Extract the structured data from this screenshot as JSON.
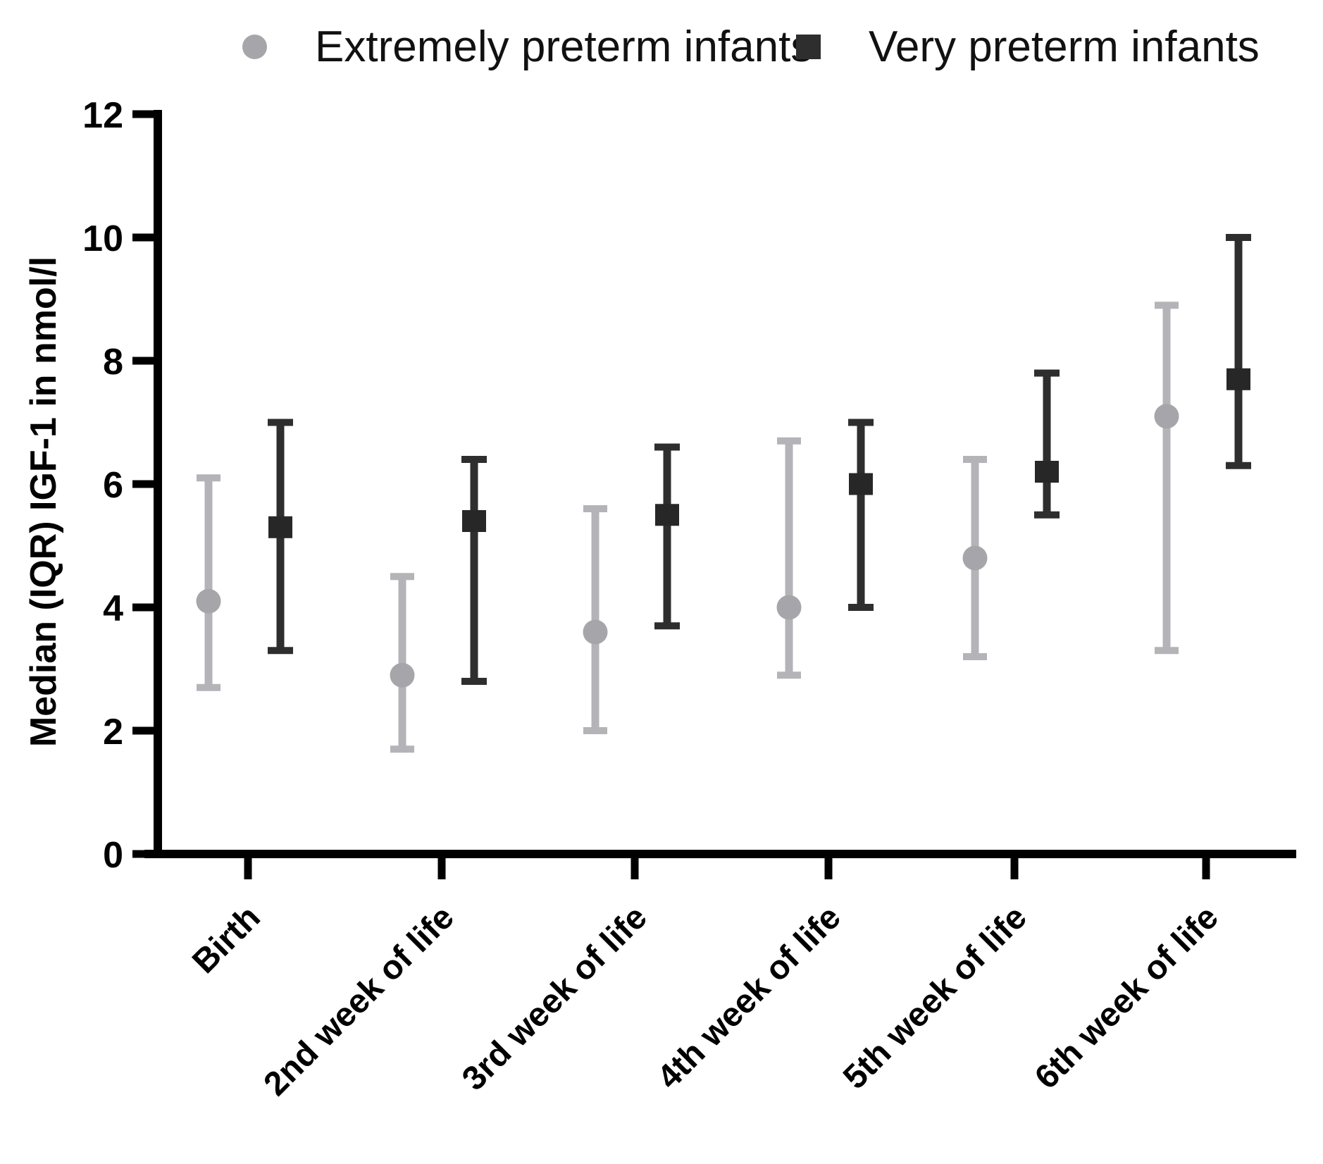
{
  "legend": {
    "items": [
      {
        "label": "Extremely preterm infants",
        "marker": "circle"
      },
      {
        "label": "Very preterm infants",
        "marker": "square"
      }
    ]
  },
  "colors": {
    "axis": "#000000",
    "gray_line": "#b4b4b8",
    "gray_marker": "#a6a6aa",
    "dark_line": "#2e2e2e",
    "dark_marker": "#272727",
    "text": "#000000"
  },
  "chart_data": {
    "type": "errorbar",
    "title": "",
    "xlabel": "",
    "ylabel": "Median (IQR) IGF-1 in nmol/l",
    "ylim": [
      0,
      12
    ],
    "yticks": [
      0,
      2,
      4,
      6,
      8,
      10,
      12
    ],
    "grid": false,
    "legend_position": "top",
    "categories": [
      "Birth",
      "2nd week of life",
      "3rd week of life",
      "4th week of life",
      "5th week of life",
      "6th week of life"
    ],
    "series": [
      {
        "name": "Extremely preterm infants",
        "marker": "circle",
        "color_key": "gray",
        "median": [
          4.1,
          2.9,
          3.6,
          4.0,
          4.8,
          7.1
        ],
        "iqr_low": [
          2.7,
          1.7,
          2.0,
          2.9,
          3.2,
          3.3
        ],
        "iqr_high": [
          6.1,
          4.5,
          5.6,
          6.7,
          6.4,
          8.9
        ]
      },
      {
        "name": "Very preterm infants",
        "marker": "square",
        "color_key": "dark",
        "median": [
          5.3,
          5.4,
          5.5,
          6.0,
          6.2,
          7.7
        ],
        "iqr_low": [
          3.3,
          2.8,
          3.7,
          4.0,
          5.5,
          6.3
        ],
        "iqr_high": [
          7.0,
          6.4,
          6.6,
          7.0,
          7.8,
          10.0
        ]
      }
    ]
  }
}
